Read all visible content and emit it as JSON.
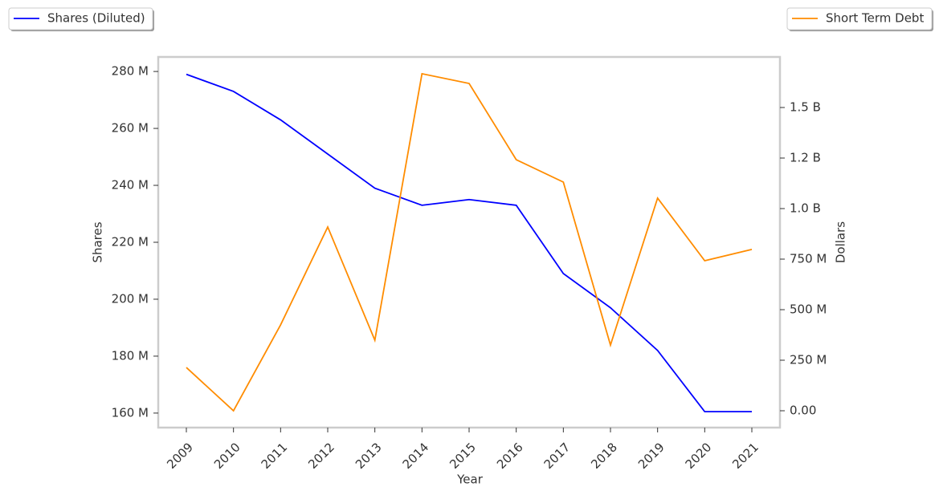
{
  "chart_data": {
    "type": "line",
    "x_label": "Year",
    "y_label": "Shares",
    "y2_label": "Dollars",
    "categories": [
      "2009",
      "2010",
      "2011",
      "2012",
      "2013",
      "2014",
      "2015",
      "2016",
      "2017",
      "2018",
      "2019",
      "2020",
      "2021"
    ],
    "series": [
      {
        "name": "Shares (Diluted)",
        "color": "#0000ff",
        "axis": "y",
        "values": [
          279000000,
          273000000,
          263000000,
          251000000,
          239000000,
          233000000,
          235000000,
          233000000,
          209000000,
          197000000,
          182000000,
          160500000,
          160500000
        ]
      },
      {
        "name": "Short Term Debt",
        "color": "#ff8c00",
        "axis": "y2",
        "values": [
          214000000,
          0,
          425000000,
          909000000,
          349000000,
          1667000000,
          1619000000,
          1242000000,
          1131000000,
          325000000,
          1052000000,
          742000000,
          798000000
        ]
      }
    ],
    "ylim": [
      154900000,
      285100000
    ],
    "yticks": [
      {
        "value": 160000000,
        "label": "160 M"
      },
      {
        "value": 180000000,
        "label": "180 M"
      },
      {
        "value": 200000000,
        "label": "200 M"
      },
      {
        "value": 220000000,
        "label": "220 M"
      },
      {
        "value": 240000000,
        "label": "240 M"
      },
      {
        "value": 260000000,
        "label": "260 M"
      },
      {
        "value": 280000000,
        "label": "280 M"
      }
    ],
    "y2lim": [
      -83300000,
      1750000000
    ],
    "y2ticks": [
      {
        "value": 0,
        "label": "0.00"
      },
      {
        "value": 250000000,
        "label": "250 M"
      },
      {
        "value": 500000000,
        "label": "500 M"
      },
      {
        "value": 750000000,
        "label": "750 M"
      },
      {
        "value": 1000000000,
        "label": "1.0 B"
      },
      {
        "value": 1250000000,
        "label": "1.2 B"
      },
      {
        "value": 1500000000,
        "label": "1.5 B"
      }
    ],
    "grid": false
  }
}
